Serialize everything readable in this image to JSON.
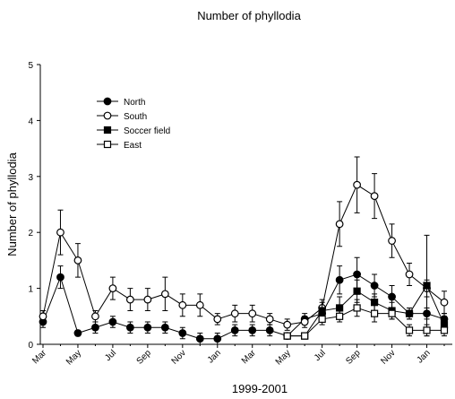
{
  "chart_data": {
    "type": "line",
    "title": "Number of phyllodia",
    "x_label": "1999-2001",
    "y_label": "Number of phyllodia",
    "categories": [
      "Mar",
      null,
      "May",
      null,
      "Jul",
      null,
      "Sep",
      null,
      "Nov",
      null,
      "Jan",
      null,
      "Mar",
      null,
      "May",
      null,
      "Jul",
      null,
      "Sep",
      null,
      "Nov",
      null,
      "Jan",
      null
    ],
    "ylim": [
      0,
      5
    ],
    "yticks": [
      0,
      1,
      2,
      3,
      4,
      5
    ],
    "legend": "upper left",
    "series": [
      {
        "name": "North",
        "color": "#000000",
        "marker": "circle",
        "filled": true,
        "values": [
          0.4,
          1.2,
          0.2,
          0.3,
          0.4,
          0.3,
          0.3,
          0.3,
          0.2,
          0.1,
          0.1,
          0.25,
          0.25,
          0.25,
          0.15,
          0.45,
          0.55,
          1.15,
          1.25,
          1.05,
          0.85,
          0.55,
          0.55,
          0.45
        ],
        "errors": [
          0.1,
          0.2,
          0.05,
          0.1,
          0.1,
          0.1,
          0.1,
          0.1,
          0.1,
          0.1,
          0.1,
          0.1,
          0.1,
          0.1,
          0.05,
          0.1,
          0.1,
          0.25,
          0.3,
          0.2,
          0.2,
          0.1,
          0.1,
          0.1
        ]
      },
      {
        "name": "South",
        "color": "#000000",
        "marker": "circle",
        "filled": false,
        "values": [
          0.5,
          2.0,
          1.5,
          0.5,
          1.0,
          0.8,
          0.8,
          0.9,
          0.7,
          0.7,
          0.45,
          0.55,
          0.55,
          0.45,
          0.35,
          0.4,
          0.65,
          2.15,
          2.85,
          2.65,
          1.85,
          1.25,
          1.0,
          0.75
        ],
        "errors": [
          0.1,
          0.4,
          0.3,
          0.1,
          0.2,
          0.2,
          0.2,
          0.3,
          0.2,
          0.2,
          0.1,
          0.15,
          0.15,
          0.1,
          0.1,
          0.1,
          0.15,
          0.4,
          0.5,
          0.4,
          0.3,
          0.2,
          0.15,
          0.2
        ]
      },
      {
        "name": "Soccer field",
        "color": "#000000",
        "marker": "square",
        "filled": true,
        "values": [
          null,
          null,
          null,
          null,
          null,
          null,
          null,
          null,
          null,
          null,
          null,
          null,
          null,
          null,
          0.15,
          0.15,
          0.6,
          0.65,
          0.95,
          0.75,
          0.6,
          0.55,
          1.05,
          0.35
        ],
        "errors": [
          null,
          null,
          null,
          null,
          null,
          null,
          null,
          null,
          null,
          null,
          null,
          null,
          null,
          null,
          0.05,
          0.05,
          0.15,
          0.2,
          0.2,
          0.15,
          0.15,
          0.1,
          0.9,
          0.15
        ]
      },
      {
        "name": "East",
        "color": "#000000",
        "marker": "square",
        "filled": false,
        "values": [
          null,
          null,
          null,
          null,
          null,
          null,
          null,
          null,
          null,
          null,
          null,
          null,
          null,
          null,
          0.15,
          0.15,
          0.45,
          0.5,
          0.65,
          0.55,
          0.55,
          0.25,
          0.25,
          0.25
        ],
        "errors": [
          null,
          null,
          null,
          null,
          null,
          null,
          null,
          null,
          null,
          null,
          null,
          null,
          null,
          null,
          0.05,
          0.05,
          0.1,
          0.1,
          0.15,
          0.15,
          0.1,
          0.1,
          0.1,
          0.1
        ]
      }
    ]
  }
}
